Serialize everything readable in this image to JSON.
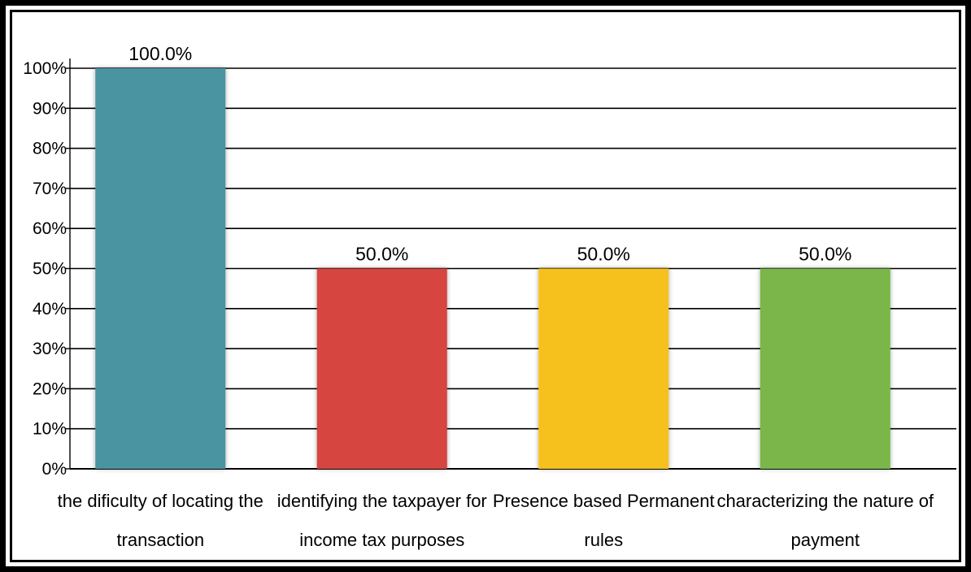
{
  "chart_data": {
    "type": "bar",
    "title": "",
    "xlabel": "",
    "ylabel": "",
    "ylim": [
      0,
      100
    ],
    "yticks": [
      "0%",
      "10%",
      "20%",
      "30%",
      "40%",
      "50%",
      "60%",
      "70%",
      "80%",
      "90%",
      "100%"
    ],
    "grid": true,
    "categories": [
      [
        "the dificulty of locating the",
        "transaction"
      ],
      [
        "identifying the taxpayer for",
        "income tax purposes"
      ],
      [
        "Presence based Permanent",
        "rules"
      ],
      [
        "characterizing the nature of",
        "payment"
      ]
    ],
    "values": [
      100,
      50,
      50,
      50
    ],
    "data_labels": [
      "100.0%",
      "50.0%",
      "50.0%",
      "50.0%"
    ],
    "colors": [
      "#4a94a0",
      "#d64540",
      "#f6c11f",
      "#7ab648"
    ]
  }
}
